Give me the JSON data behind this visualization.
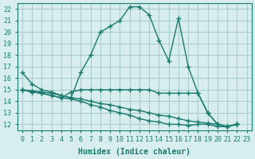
{
  "xlabel": "Humidex (Indice chaleur)",
  "ylabel": "",
  "background_color": "#d8eeee",
  "grid_color": "#aacccc",
  "line_color": "#1a7a6e",
  "xlim": [
    -0.5,
    23.5
  ],
  "ylim": [
    11.5,
    22.5
  ],
  "xticks": [
    0,
    1,
    2,
    3,
    4,
    5,
    6,
    7,
    8,
    9,
    10,
    11,
    12,
    13,
    14,
    15,
    16,
    17,
    18,
    19,
    20,
    21,
    22,
    23
  ],
  "yticks": [
    12,
    13,
    14,
    15,
    16,
    17,
    18,
    19,
    20,
    21,
    22
  ],
  "series": [
    [
      16.5,
      15.5,
      15.0,
      14.8,
      14.5,
      14.3,
      16.5,
      18.0,
      20.0,
      20.5,
      21.0,
      22.2,
      22.2,
      21.5,
      19.3,
      17.5,
      21.2,
      17.0,
      14.7,
      13.0,
      12.0,
      11.8,
      12.0
    ],
    [
      15.0,
      14.8,
      14.7,
      14.5,
      14.3,
      14.8,
      15.0,
      15.0,
      15.0,
      15.0,
      15.0,
      15.0,
      15.0,
      15.0,
      14.7,
      14.7,
      14.7,
      14.7,
      14.7,
      13.0,
      12.0,
      11.8,
      12.0
    ],
    [
      15.0,
      14.8,
      14.7,
      14.5,
      14.3,
      14.2,
      14.0,
      13.7,
      13.5,
      13.2,
      13.0,
      12.8,
      12.5,
      12.3,
      12.2,
      12.0,
      12.0,
      11.9,
      12.0,
      12.0,
      11.8,
      11.8,
      12.0
    ],
    [
      15.0,
      14.9,
      14.8,
      14.7,
      14.5,
      14.3,
      14.2,
      14.0,
      13.8,
      13.7,
      13.5,
      13.3,
      13.2,
      13.0,
      12.8,
      12.7,
      12.5,
      12.3,
      12.2,
      12.1,
      12.0,
      11.8,
      12.0
    ]
  ],
  "x_series": [
    0,
    1,
    2,
    3,
    4,
    5,
    6,
    7,
    8,
    9,
    10,
    11,
    12,
    13,
    14,
    15,
    16,
    17,
    18,
    19,
    20,
    21,
    22
  ]
}
